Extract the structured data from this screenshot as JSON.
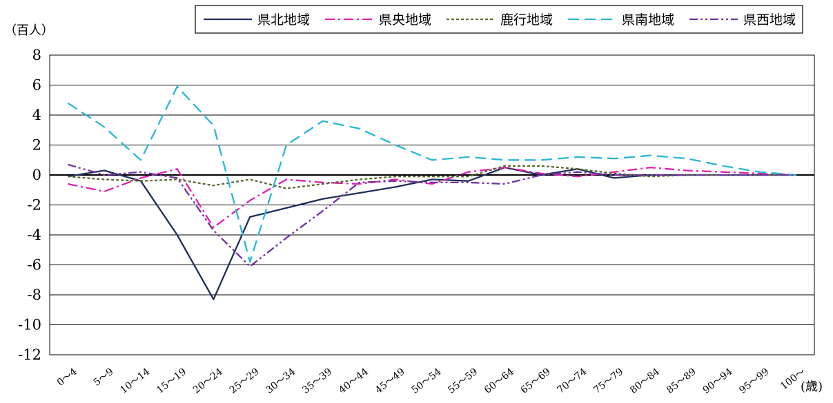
{
  "chart_data": {
    "type": "line",
    "ylabel": "（百人）",
    "xlabel": "(歳)",
    "ylim": [
      -12,
      8
    ],
    "yticks": [
      8,
      6,
      4,
      2,
      0,
      -2,
      -4,
      -6,
      -8,
      -10,
      -12
    ],
    "grid": true,
    "legend_position": "top-right",
    "categories": [
      "0～4",
      "5～9",
      "10～14",
      "15～19",
      "20～24",
      "25～29",
      "30～34",
      "35～39",
      "40～44",
      "45～49",
      "50～54",
      "55～59",
      "60～64",
      "65～69",
      "70～74",
      "75～79",
      "80～84",
      "85～89",
      "90～94",
      "95～99",
      "100～"
    ],
    "series": [
      {
        "name": "県北地域",
        "color": "#1f2d5a",
        "dash": "solid",
        "values": [
          -0.1,
          0.3,
          -0.4,
          -4.0,
          -8.3,
          -2.8,
          -2.2,
          -1.6,
          -1.2,
          -0.8,
          -0.3,
          -0.4,
          0.5,
          0.0,
          0.4,
          -0.2,
          0.0,
          0.0,
          0.0,
          0.0,
          0.0
        ]
      },
      {
        "name": "県央地域",
        "color": "#e020b0",
        "dash": "dash-dot",
        "values": [
          -0.6,
          -1.1,
          -0.2,
          0.4,
          -3.5,
          -1.7,
          -0.3,
          -0.5,
          -0.6,
          -0.3,
          -0.6,
          0.2,
          0.5,
          0.1,
          -0.1,
          0.2,
          0.5,
          0.3,
          0.2,
          0.1,
          0.0
        ]
      },
      {
        "name": "鹿行地域",
        "color": "#556b2f",
        "dash": "dotted",
        "values": [
          -0.1,
          -0.3,
          -0.4,
          -0.3,
          -0.7,
          -0.3,
          -0.9,
          -0.6,
          -0.3,
          -0.1,
          -0.1,
          -0.1,
          0.6,
          0.6,
          0.4,
          0.1,
          -0.1,
          0.0,
          0.0,
          0.0,
          0.0
        ]
      },
      {
        "name": "県南地域",
        "color": "#29b6d8",
        "dash": "long-dash",
        "values": [
          4.8,
          3.2,
          1.0,
          5.9,
          3.3,
          -5.8,
          2.0,
          3.6,
          3.1,
          2.0,
          1.0,
          1.2,
          1.0,
          1.0,
          1.2,
          1.1,
          1.3,
          1.1,
          0.6,
          0.2,
          0.0
        ]
      },
      {
        "name": "県西地域",
        "color": "#7030a0",
        "dash": "dash-dot-dot",
        "values": [
          0.7,
          0.0,
          0.2,
          -0.2,
          -3.7,
          -6.1,
          -4.2,
          -2.4,
          -0.5,
          -0.4,
          -0.5,
          -0.5,
          -0.6,
          0.0,
          0.2,
          0.0,
          0.0,
          0.0,
          0.0,
          0.0,
          0.0
        ]
      }
    ]
  }
}
